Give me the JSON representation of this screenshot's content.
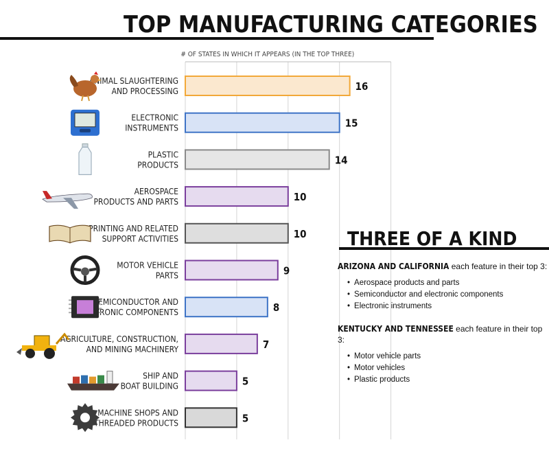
{
  "title": "TOP MANUFACTURING CATEGORIES",
  "chart_data": {
    "type": "bar",
    "orientation": "horizontal",
    "xlabel": "# OF STATES IN WHICH IT APPEARS (IN THE TOP THREE)",
    "xlim": [
      0,
      20
    ],
    "grid": true,
    "categories": [
      {
        "lines": [
          "ANIMAL SLAUGHTERING",
          "AND PROCESSING"
        ],
        "value": 16,
        "color": "#f2a838",
        "fill": "#fbe8cf",
        "icon": "chicken-icon"
      },
      {
        "lines": [
          "ELECTRONIC",
          "INSTRUMENTS"
        ],
        "value": 15,
        "color": "#3d73c6",
        "fill": "#d8e3f6",
        "icon": "blood-pressure-monitor-icon"
      },
      {
        "lines": [
          "PLASTIC",
          "PRODUCTS"
        ],
        "value": 14,
        "color": "#8a8a8a",
        "fill": "#e6e6e6",
        "icon": "plastic-bottle-icon"
      },
      {
        "lines": [
          "AEROSPACE",
          "PRODUCTS AND PARTS"
        ],
        "value": 10,
        "color": "#7a3e9c",
        "fill": "#e6dbef",
        "icon": "airplane-icon"
      },
      {
        "lines": [
          "PRINTING AND RELATED",
          "SUPPORT ACTIVITIES"
        ],
        "value": 10,
        "color": "#555555",
        "fill": "#dedede",
        "icon": "open-book-icon"
      },
      {
        "lines": [
          "MOTOR VEHICLE",
          "PARTS"
        ],
        "value": 9,
        "color": "#7a3e9c",
        "fill": "#e6dbef",
        "icon": "steering-wheel-icon"
      },
      {
        "lines": [
          "SEMICONDUCTOR AND",
          "ELECTRONIC COMPONENTS"
        ],
        "value": 8,
        "color": "#3d73c6",
        "fill": "#d8e3f6",
        "icon": "microchip-icon"
      },
      {
        "lines": [
          "AGRICULTURE, CONSTRUCTION,",
          "AND MINING MACHINERY"
        ],
        "value": 7,
        "color": "#7a3e9c",
        "fill": "#e6dbef",
        "icon": "backhoe-icon"
      },
      {
        "lines": [
          "SHIP AND",
          "BOAT BUILDING"
        ],
        "value": 5,
        "color": "#7a3e9c",
        "fill": "#e6dbef",
        "icon": "cargo-ship-icon"
      },
      {
        "lines": [
          "MACHINE SHOPS AND",
          "THREADED PRODUCTS"
        ],
        "value": 5,
        "color": "#333333",
        "fill": "#d9d9d9",
        "icon": "gear-icon"
      }
    ]
  },
  "side": {
    "title": "THREE OF A KIND",
    "groups": [
      {
        "states": "ARIZONA AND CALIFORNIA",
        "suffix": " each feature in their top 3:",
        "items": [
          "Aerospace products and parts",
          "Semiconductor and electronic components",
          "Electronic instruments"
        ]
      },
      {
        "states": "KENTUCKY AND TENNESSEE",
        "suffix": " each feature in their top 3:",
        "items": [
          "Motor vehicle parts",
          "Motor vehicles",
          "Plastic products"
        ]
      }
    ]
  }
}
